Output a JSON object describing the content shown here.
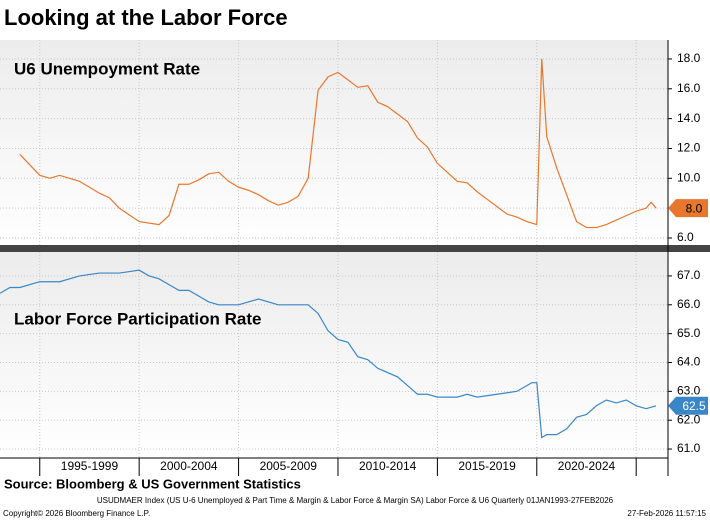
{
  "title": "Looking at the Labor Force",
  "source": "Source: Bloomberg & US Government Statistics",
  "footnote": "USUDMAER Index (US U-6 Unemployed & Part Time & Margin & Labor Force & Margin SA) Labor Force & U6 Quarterly 01JAN1993-27FEB2026",
  "copyright": "Copyright© 2026 Bloomberg Finance L.P.",
  "timestamp": "27-Feb-2026 11:57:15",
  "chart_data": [
    {
      "type": "line",
      "title": "U6 Unempoyment Rate",
      "x": [
        1994,
        1995,
        1995.5,
        1996,
        1997,
        1998,
        1998.5,
        1999,
        2000,
        2001,
        2001.5,
        2002,
        2002.5,
        2003,
        2003.5,
        2004,
        2004.5,
        2005,
        2005.5,
        2006,
        2006.5,
        2007,
        2007.5,
        2008,
        2008.5,
        2009,
        2009.5,
        2010,
        2010.5,
        2011,
        2011.5,
        2012,
        2012.5,
        2013,
        2013.5,
        2014,
        2014.5,
        2015,
        2015.5,
        2016,
        2016.5,
        2017,
        2017.5,
        2018,
        2018.5,
        2019,
        2019.5,
        2020,
        2020.25,
        2020.5,
        2021,
        2021.5,
        2022,
        2022.5,
        2023,
        2023.5,
        2024,
        2024.5,
        2025,
        2025.5,
        2025.75,
        2026
      ],
      "series": [
        {
          "color": "#e8772e",
          "last_label": "8.0",
          "values": [
            11.6,
            10.2,
            10.0,
            10.2,
            9.8,
            9.0,
            8.7,
            8.0,
            7.1,
            6.9,
            7.5,
            9.6,
            9.6,
            9.9,
            10.3,
            10.4,
            9.8,
            9.4,
            9.2,
            8.9,
            8.5,
            8.2,
            8.4,
            8.8,
            10.0,
            15.9,
            16.8,
            17.1,
            16.6,
            16.1,
            16.2,
            15.1,
            14.8,
            14.3,
            13.8,
            12.7,
            12.1,
            11.0,
            10.4,
            9.8,
            9.7,
            9.1,
            8.6,
            8.1,
            7.6,
            7.4,
            7.1,
            6.9,
            18.0,
            12.8,
            10.7,
            8.9,
            7.1,
            6.7,
            6.7,
            6.9,
            7.2,
            7.5,
            7.8,
            8.0,
            8.4,
            8.0
          ]
        }
      ],
      "xlim": [
        1993,
        2026.6
      ],
      "xgrid": [
        1995,
        2000,
        2005,
        2010,
        2015,
        2020,
        2025
      ],
      "ylim": [
        5.53,
        19.27
      ],
      "yticks": [
        {
          "value": 6,
          "label": "6.0"
        },
        {
          "value": 8,
          "label": "8.0"
        },
        {
          "value": 10,
          "label": "10.0"
        },
        {
          "value": 12,
          "label": "12.0"
        },
        {
          "value": 14,
          "label": "14.0"
        },
        {
          "value": 16,
          "label": "16.0"
        },
        {
          "value": 18,
          "label": "18.0"
        }
      ],
      "grid": true
    },
    {
      "type": "line",
      "title": "Labor Force Participation Rate",
      "x": [
        1993,
        1993.5,
        1994,
        1995,
        1996,
        1997,
        1998,
        1999,
        2000,
        2000.5,
        2001,
        2001.5,
        2002,
        2002.5,
        2003,
        2003.5,
        2004,
        2005,
        2006,
        2007,
        2008,
        2008.5,
        2009,
        2009.5,
        2010,
        2010.5,
        2011,
        2011.5,
        2012,
        2013,
        2013.5,
        2014,
        2014.5,
        2015,
        2016,
        2016.5,
        2017,
        2018,
        2019,
        2019.75,
        2020,
        2020.25,
        2020.5,
        2021,
        2021.5,
        2022,
        2022.5,
        2023,
        2023.5,
        2024,
        2024.5,
        2025,
        2025.5,
        2026
      ],
      "series": [
        {
          "color": "#3a87c8",
          "last_label": "62.5",
          "values": [
            66.4,
            66.6,
            66.6,
            66.8,
            66.8,
            67.0,
            67.1,
            67.1,
            67.2,
            67.0,
            66.9,
            66.7,
            66.5,
            66.5,
            66.3,
            66.1,
            66.0,
            66.0,
            66.2,
            66.0,
            66.0,
            66.0,
            65.7,
            65.1,
            64.8,
            64.7,
            64.2,
            64.1,
            63.8,
            63.5,
            63.2,
            62.9,
            62.9,
            62.8,
            62.8,
            62.9,
            62.8,
            62.9,
            63.0,
            63.3,
            63.3,
            61.4,
            61.5,
            61.5,
            61.7,
            62.1,
            62.2,
            62.5,
            62.7,
            62.6,
            62.7,
            62.5,
            62.4,
            62.5
          ]
        }
      ],
      "xlim": [
        1993,
        2026.6
      ],
      "xgrid": [
        1995,
        2000,
        2005,
        2010,
        2015,
        2020,
        2025
      ],
      "xticks": [
        {
          "value": 1997.5,
          "label": "1995-1999"
        },
        {
          "value": 2002.5,
          "label": "2000-2004"
        },
        {
          "value": 2007.5,
          "label": "2005-2009"
        },
        {
          "value": 2012.5,
          "label": "2010-2014"
        },
        {
          "value": 2017.5,
          "label": "2015-2019"
        },
        {
          "value": 2022.5,
          "label": "2020-2024"
        }
      ],
      "ylim": [
        60.69,
        67.83
      ],
      "yticks": [
        {
          "value": 61,
          "label": "61.0"
        },
        {
          "value": 62,
          "label": "62.0"
        },
        {
          "value": 63,
          "label": "63.0"
        },
        {
          "value": 64,
          "label": "64.0"
        },
        {
          "value": 65,
          "label": "65.0"
        },
        {
          "value": 66,
          "label": "66.0"
        },
        {
          "value": 67,
          "label": "67.0"
        }
      ],
      "grid": true
    }
  ]
}
